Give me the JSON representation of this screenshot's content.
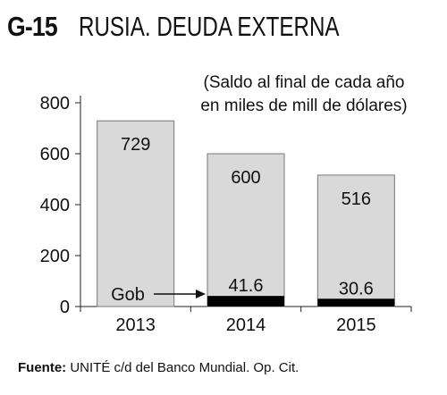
{
  "header": {
    "code": "G-15",
    "name": "RUSIA. DEUDA EXTERNA"
  },
  "note": {
    "line1": "(Saldo al final de cada año",
    "line2": "en miles de mill de dólares)"
  },
  "source": {
    "label": "Fuente:",
    "text": " UNITÉ c/d del Banco Mundial. Op. Cit."
  },
  "chart_data": {
    "type": "bar",
    "categories": [
      "2013",
      "2014",
      "2015"
    ],
    "series": [
      {
        "name": "Gob",
        "values": [
          null,
          41.6,
          30.6
        ],
        "color": "#000000"
      },
      {
        "values": [
          729,
          600,
          516
        ],
        "color": "#d9d9d9"
      }
    ],
    "labels_total": [
      "729",
      "600",
      "516"
    ],
    "labels_gob": [
      "",
      "41.6",
      "30.6"
    ],
    "annotation": "Gob",
    "yticks": [
      "0",
      "200",
      "400",
      "600",
      "800"
    ],
    "ylim": [
      0,
      800
    ],
    "xlabel": "",
    "ylabel": "",
    "grid": false
  }
}
